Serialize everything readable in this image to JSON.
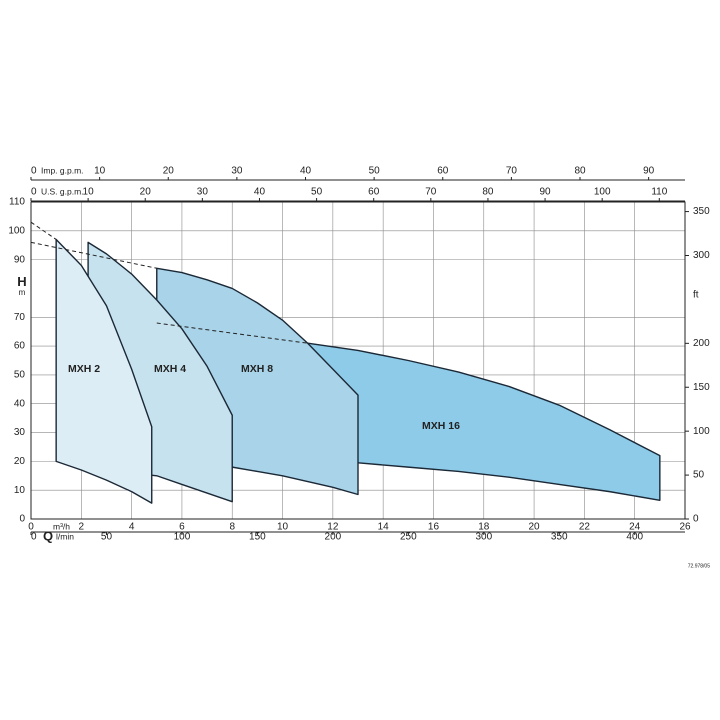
{
  "chart_data": {
    "type": "area",
    "xlim": [
      0,
      26
    ],
    "xticks": [
      0,
      2,
      4,
      6,
      8,
      10,
      12,
      14,
      16,
      18,
      20,
      22,
      24,
      26
    ],
    "x_unit": "m³/h",
    "ylim": [
      0,
      110
    ],
    "yticks": [
      0,
      10,
      20,
      30,
      40,
      50,
      60,
      70,
      90,
      100,
      110
    ],
    "y_label": "H",
    "y_unit": "m",
    "y2lim": [
      0,
      360.9
    ],
    "y2ticks": [
      0,
      50,
      100,
      150,
      200,
      300,
      350
    ],
    "y2_unit": "ft",
    "grid": true,
    "extra_x_axes": [
      {
        "position": "bottom",
        "name": "Q",
        "unit": "l/min",
        "lim": [
          0,
          433.3
        ],
        "ticks": [
          0,
          50,
          100,
          150,
          200,
          250,
          300,
          350,
          400
        ]
      },
      {
        "position": "top",
        "unit": "U.S. g.p.m.",
        "lim": [
          0,
          114.5
        ],
        "ticks": [
          0,
          10,
          20,
          30,
          40,
          50,
          60,
          70,
          80,
          90,
          100,
          110
        ]
      },
      {
        "position": "top",
        "unit": "Imp. g.p.m.",
        "lim": [
          0,
          95.3
        ],
        "ticks": [
          0,
          10,
          20,
          30,
          40,
          50,
          60,
          70,
          80,
          90
        ]
      }
    ],
    "series": [
      {
        "name": "MXH 16",
        "color": "#8ecbe8",
        "x": [
          11,
          13,
          15,
          17,
          19,
          21,
          23,
          25
        ],
        "values": [
          61,
          58.5,
          55,
          51,
          46,
          39.5,
          31,
          22
        ],
        "lower": [
          20,
          19.5,
          18,
          16.5,
          14.5,
          12,
          9.5,
          6.5
        ]
      },
      {
        "name": "MXH 8",
        "color": "#a8d3e8",
        "x": [
          5,
          6,
          7,
          8,
          9,
          10,
          11,
          12,
          13
        ],
        "values": [
          87,
          85.5,
          83,
          80,
          75,
          69,
          61,
          52,
          43
        ],
        "lower": [
          20,
          19.5,
          19,
          18,
          16.5,
          15,
          13,
          11,
          8.5
        ]
      },
      {
        "name": "MXH 4",
        "color": "#c6e2ee",
        "x": [
          2.27,
          3,
          4,
          5,
          6,
          7,
          8
        ],
        "values": [
          96,
          92,
          85,
          76,
          66,
          53,
          36
        ],
        "lower": [
          18,
          17.5,
          16,
          15,
          12,
          9,
          6
        ]
      },
      {
        "name": "MXH 2",
        "color": "#ddedf5",
        "x": [
          1,
          2,
          3,
          4,
          4.8
        ],
        "values": [
          97,
          88,
          74,
          52,
          32
        ],
        "lower": [
          20,
          17,
          13.5,
          9.5,
          5.5
        ]
      }
    ],
    "dashed_lines": [
      {
        "x": [
          0,
          1
        ],
        "values": [
          103,
          97
        ]
      },
      {
        "x": [
          0,
          5
        ],
        "values": [
          96,
          87
        ]
      },
      {
        "x": [
          5,
          11
        ],
        "values": [
          68,
          61
        ]
      }
    ],
    "footnote": "72.978/05"
  }
}
